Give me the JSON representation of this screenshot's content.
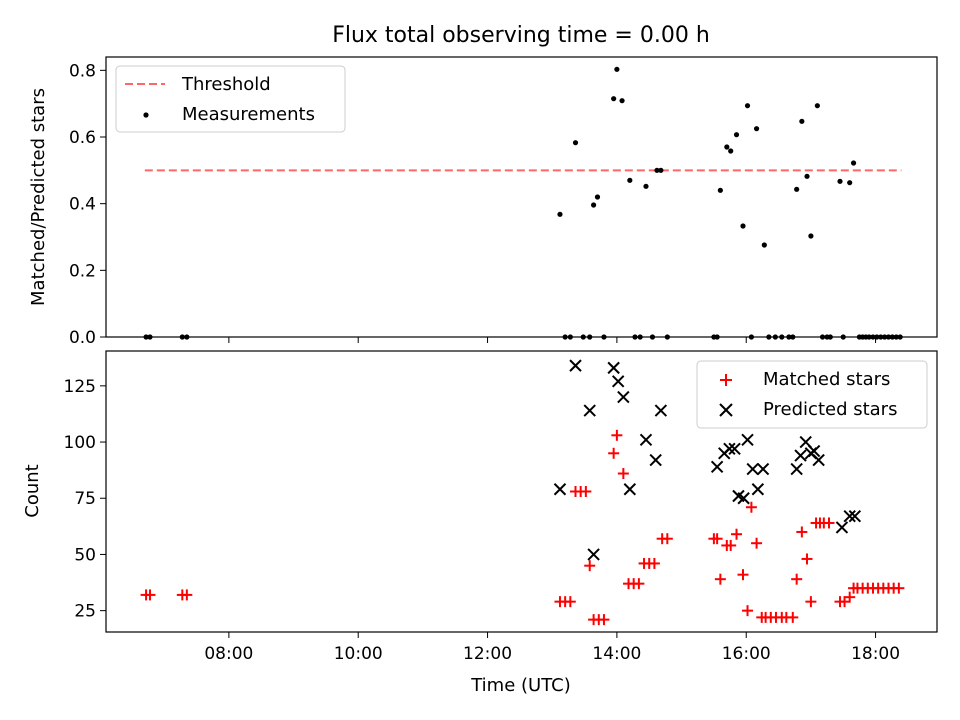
{
  "chart_data": {
    "title": "Flux total observing time = 0.00 h",
    "xlabel": "Time (UTC)",
    "xlim_hours": [
      6.1,
      18.95
    ],
    "xticks": [
      {
        "hour": 8,
        "label": "08:00"
      },
      {
        "hour": 10,
        "label": "10:00"
      },
      {
        "hour": 12,
        "label": "12:00"
      },
      {
        "hour": 14,
        "label": "14:00"
      },
      {
        "hour": 16,
        "label": "16:00"
      },
      {
        "hour": 18,
        "label": "18:00"
      }
    ],
    "panels": [
      {
        "type": "line+scatter",
        "ylabel": "Matched/Predicted stars",
        "ylim": [
          0,
          0.84
        ],
        "yticks": [
          "0.0",
          "0.2",
          "0.4",
          "0.6",
          "0.8"
        ],
        "ytick_values": [
          0,
          0.2,
          0.4,
          0.6,
          0.8
        ],
        "legend_position": "upper-left",
        "series": [
          {
            "name": "Threshold",
            "kind": "dashed-line",
            "color": "#ff6666",
            "x": [
              6.7,
              18.4
            ],
            "y": [
              0.5,
              0.5
            ]
          },
          {
            "name": "Measurements",
            "kind": "dot",
            "color": "#000000",
            "x": [
              6.72,
              6.78,
              7.28,
              7.35,
              13.12,
              13.2,
              13.28,
              13.36,
              13.48,
              13.58,
              13.64,
              13.7,
              13.8,
              13.95,
              14.0,
              14.08,
              14.2,
              14.28,
              14.36,
              14.45,
              14.55,
              14.62,
              14.68,
              14.78,
              15.5,
              15.55,
              15.6,
              15.7,
              15.76,
              15.85,
              15.95,
              16.02,
              16.08,
              16.16,
              16.28,
              16.35,
              16.45,
              16.55,
              16.66,
              16.72,
              16.78,
              16.86,
              16.94,
              17.0,
              17.1,
              17.18,
              17.25,
              17.3,
              17.45,
              17.5,
              17.6,
              17.66,
              17.75,
              17.8,
              17.85,
              17.9,
              17.96,
              18.02,
              18.08,
              18.14,
              18.2,
              18.26,
              18.32,
              18.38
            ],
            "y": [
              0,
              0,
              0,
              0,
              0.368,
              0,
              0,
              0.583,
              0,
              0,
              0.396,
              0.42,
              0,
              0.715,
              0.803,
              0.709,
              0.47,
              0,
              0,
              0.452,
              0,
              0.5,
              0.5,
              0,
              0,
              0,
              0.44,
              0.57,
              0.558,
              0.607,
              0.333,
              0.694,
              0,
              0.625,
              0.276,
              0,
              0,
              0,
              0,
              0,
              0.443,
              0.647,
              0.482,
              0.303,
              0.694,
              0,
              0,
              0,
              0.467,
              0,
              0.463,
              0.522,
              0,
              0,
              0,
              0,
              0,
              0,
              0,
              0,
              0,
              0,
              0,
              0
            ]
          }
        ]
      },
      {
        "type": "scatter",
        "ylabel": "Count",
        "ylim": [
          15.5,
          140.5
        ],
        "yticks": [
          "25",
          "50",
          "75",
          "100",
          "125"
        ],
        "ytick_values": [
          25,
          50,
          75,
          100,
          125
        ],
        "legend_position": "upper-right",
        "series": [
          {
            "name": "Matched stars",
            "kind": "plus",
            "color": "#ff0000",
            "x": [
              6.72,
              6.78,
              7.28,
              7.35,
              13.12,
              13.2,
              13.28,
              13.36,
              13.44,
              13.52,
              13.58,
              13.64,
              13.72,
              13.8,
              13.95,
              14.0,
              14.1,
              14.18,
              14.26,
              14.34,
              14.42,
              14.5,
              14.58,
              14.7,
              14.78,
              15.5,
              15.55,
              15.6,
              15.7,
              15.76,
              15.85,
              15.95,
              16.02,
              16.08,
              16.16,
              16.24,
              16.3,
              16.38,
              16.46,
              16.55,
              16.62,
              16.72,
              16.78,
              16.86,
              16.94,
              17.0,
              17.08,
              17.14,
              17.2,
              17.28,
              17.45,
              17.52,
              17.6,
              17.66,
              17.72,
              17.8,
              17.88,
              17.96,
              18.04,
              18.12,
              18.2,
              18.28,
              18.36
            ],
            "y": [
              32,
              32,
              32,
              32,
              29,
              29,
              29,
              78,
              78,
              78,
              45,
              21,
              21,
              21,
              95,
              103,
              86,
              37,
              37,
              37,
              46,
              46,
              46,
              57,
              57,
              57,
              57,
              39,
              54,
              54,
              59,
              41,
              25,
              71,
              55,
              22,
              22,
              22,
              22,
              22,
              22,
              22,
              39,
              60,
              48,
              29,
              64,
              64,
              64,
              64,
              29,
              29,
              31,
              35,
              35,
              35,
              35,
              35,
              35,
              35,
              35,
              35,
              35
            ]
          },
          {
            "name": "Predicted stars",
            "kind": "x",
            "color": "#000000",
            "x": [
              13.12,
              13.36,
              13.58,
              13.64,
              13.95,
              14.02,
              14.1,
              14.2,
              14.45,
              14.6,
              14.68,
              15.55,
              15.66,
              15.74,
              15.82,
              15.88,
              15.96,
              16.02,
              16.1,
              16.18,
              16.26,
              16.78,
              16.84,
              16.92,
              17.0,
              17.05,
              17.12,
              17.48,
              17.6,
              17.68
            ],
            "y": [
              79,
              134,
              114,
              50,
              133,
              127,
              120,
              79,
              101,
              92,
              114,
              89,
              95,
              97,
              97,
              76,
              75,
              101,
              88,
              79,
              88,
              88,
              94,
              100,
              95,
              96,
              92,
              62,
              67,
              67
            ]
          }
        ]
      }
    ]
  }
}
